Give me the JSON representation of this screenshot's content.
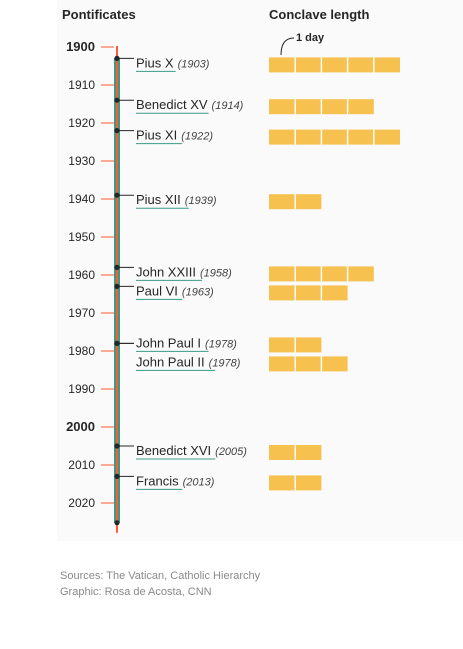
{
  "headers": {
    "left": "Pontificates",
    "right": "Conclave length"
  },
  "unit_annotation": "1 day",
  "colors": {
    "accent_red": "#ff5a32",
    "accent_teal": "#3a9a86",
    "bar": "#f7c150",
    "text": "#262626",
    "muted": "#8a8a8a"
  },
  "chart_data": {
    "type": "bar",
    "axis": {
      "years_range": [
        1900,
        2026
      ],
      "ticks": [
        {
          "label": "1900",
          "year": 1900,
          "bold": true
        },
        {
          "label": "1910",
          "year": 1910,
          "bold": false
        },
        {
          "label": "1920",
          "year": 1920,
          "bold": false
        },
        {
          "label": "1930",
          "year": 1930,
          "bold": false
        },
        {
          "label": "1940",
          "year": 1940,
          "bold": false
        },
        {
          "label": "1950",
          "year": 1950,
          "bold": false
        },
        {
          "label": "1960",
          "year": 1960,
          "bold": false
        },
        {
          "label": "1970",
          "year": 1970,
          "bold": false
        },
        {
          "label": "1980",
          "year": 1980,
          "bold": false
        },
        {
          "label": "1990",
          "year": 1990,
          "bold": false
        },
        {
          "label": "2000",
          "year": 2000,
          "bold": true
        },
        {
          "label": "2010",
          "year": 2010,
          "bold": false
        },
        {
          "label": "2020",
          "year": 2020,
          "bold": false
        }
      ]
    },
    "popes": [
      {
        "name": "Pius X",
        "year_label": "(1903)",
        "year": 1903,
        "days": 5
      },
      {
        "name": "Benedict XV",
        "year_label": "(1914)",
        "year": 1914,
        "days": 4
      },
      {
        "name": "Pius XI",
        "year_label": "(1922)",
        "year": 1922,
        "days": 5
      },
      {
        "name": "Pius XII",
        "year_label": "(1939)",
        "year": 1939,
        "days": 2
      },
      {
        "name": "John XXIII",
        "year_label": "(1958)",
        "year": 1958,
        "days": 4
      },
      {
        "name": "Paul VI",
        "year_label": "(1963)",
        "year": 1963,
        "days": 3
      },
      {
        "name": "John Paul I",
        "year_label": "(1978)",
        "year": 1978,
        "days": 2
      },
      {
        "name": "John Paul II",
        "year_label": "(1978)",
        "year": 1978,
        "days": 3
      },
      {
        "name": "Benedict XVI",
        "year_label": "(2005)",
        "year": 2005,
        "days": 2
      },
      {
        "name": "Francis",
        "year_label": "(2013)",
        "year": 2013,
        "days": 2
      }
    ]
  },
  "footer": {
    "sources": "Sources: The Vatican, Catholic Hierarchy",
    "graphic": "Graphic: Rosa de Acosta, CNN"
  }
}
